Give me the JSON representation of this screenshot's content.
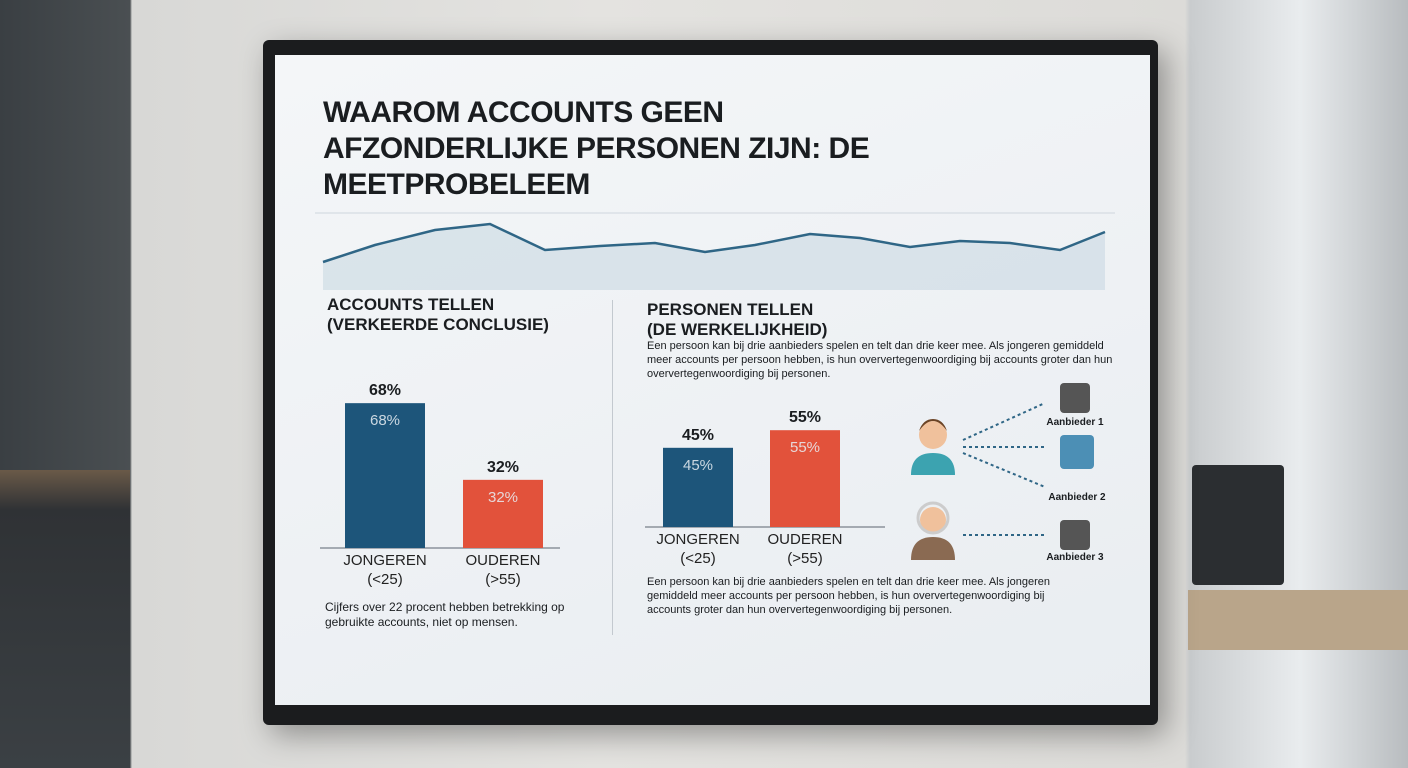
{
  "title": "WAAROM ACCOUNTS GEEN AFZONDERLIJKE PERSONEN ZIJN: DE MEETPROBELEEM",
  "left": {
    "heading": [
      "ACCOUNTS TELLEN",
      "(VERKEERDE CONCLUSIE)"
    ],
    "note": "Cijfers over 22 procent hebben betrekking op gebruikte accounts, niet op mensen."
  },
  "right": {
    "heading": [
      "PERSONEN TELLEN",
      "(DE WERKELIJKHEID)"
    ],
    "intro": "Een persoon kan bij drie aanbieders spelen en telt dan drie keer mee. Als jongeren gemiddeld meer accounts per persoon hebben, is hun oververtegenwoordiging bij accounts groter dan hun oververtegenwoordiging bij personen.",
    "note": "Een persoon kan bij drie aanbieders spelen en telt dan drie keer mee. Als jongeren gemiddeld meer accounts per persoon hebben, is hun oververtegenwoordiging bij accounts groter dan hun oververtegenwoordiging bij personen.",
    "providers": [
      "Aanbieder 1",
      "Aanbieder 2",
      "Aanbieder 3"
    ]
  },
  "chart_data": [
    {
      "type": "bar",
      "categories": [
        "JONGEREN\n(<25)",
        "OUDEREN\n(>55)"
      ],
      "values": [
        68,
        32
      ],
      "value_labels": [
        "68%",
        "32%"
      ],
      "colors": [
        "#1d557a",
        "#e2523b"
      ],
      "ylim": [
        0,
        100
      ]
    },
    {
      "type": "bar",
      "categories": [
        "JONGEREN\n(<25)",
        "OUDEREN\n(>55)"
      ],
      "values": [
        45,
        55
      ],
      "value_labels": [
        "45%",
        "55%"
      ],
      "colors": [
        "#1d557a",
        "#e2523b"
      ],
      "ylim": [
        0,
        100
      ]
    }
  ]
}
